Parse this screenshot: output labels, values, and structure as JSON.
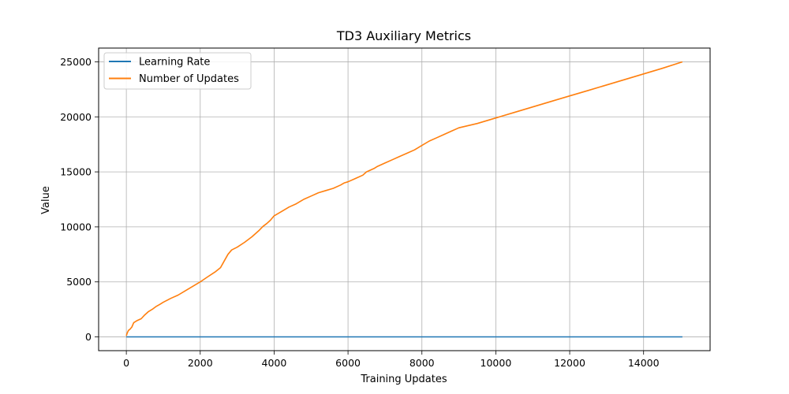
{
  "chart_data": {
    "type": "line",
    "title": "TD3 Auxiliary Metrics",
    "xlabel": "Training Updates",
    "ylabel": "Value",
    "xlim": [
      -750,
      15800
    ],
    "ylim": [
      -1250,
      26250
    ],
    "xticks": [
      0,
      2000,
      4000,
      6000,
      8000,
      10000,
      12000,
      14000
    ],
    "yticks": [
      0,
      5000,
      10000,
      15000,
      20000,
      25000
    ],
    "grid": true,
    "legend_position": "upper left",
    "series": [
      {
        "name": "Learning Rate",
        "color": "#1f77b4",
        "x": [
          0,
          15050
        ],
        "y": [
          0,
          0
        ]
      },
      {
        "name": "Number of Updates",
        "color": "#ff7f0e",
        "x": [
          0,
          30,
          60,
          100,
          150,
          200,
          300,
          400,
          500,
          600,
          700,
          800,
          900,
          1000,
          1200,
          1400,
          1600,
          1800,
          2000,
          2200,
          2400,
          2550,
          2650,
          2750,
          2850,
          3000,
          3200,
          3400,
          3600,
          3700,
          3800,
          3900,
          4000,
          4200,
          4400,
          4600,
          4800,
          5000,
          5200,
          5400,
          5600,
          5800,
          5900,
          6000,
          6200,
          6400,
          6500,
          6700,
          6800,
          7000,
          7200,
          7400,
          7600,
          7800,
          8000,
          8200,
          8400,
          8600,
          8800,
          9000,
          9500,
          10000,
          10500,
          11000,
          11500,
          12000,
          12500,
          13000,
          13500,
          14000,
          14500,
          15050
        ],
        "y": [
          100,
          400,
          600,
          700,
          900,
          1300,
          1500,
          1650,
          2000,
          2300,
          2500,
          2750,
          2950,
          3150,
          3500,
          3800,
          4200,
          4600,
          5000,
          5450,
          5900,
          6300,
          6900,
          7500,
          7900,
          8150,
          8600,
          9100,
          9700,
          10050,
          10300,
          10600,
          11000,
          11400,
          11800,
          12100,
          12500,
          12800,
          13100,
          13300,
          13500,
          13800,
          14000,
          14100,
          14400,
          14700,
          15000,
          15300,
          15500,
          15800,
          16100,
          16400,
          16700,
          17000,
          17400,
          17800,
          18100,
          18400,
          18700,
          19000,
          19400,
          19900,
          20400,
          20900,
          21400,
          21900,
          22400,
          22900,
          23400,
          23900,
          24400,
          25000
        ]
      }
    ]
  }
}
